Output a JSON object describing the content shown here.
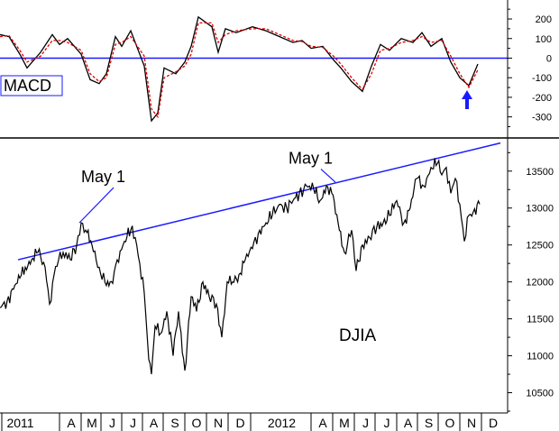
{
  "colors": {
    "price": "#000000",
    "macd": "#000000",
    "signal": "#e00000",
    "trend": "#1a1aff",
    "zero": "#1a1aff",
    "arrow": "#1a1aff",
    "axis": "#000000"
  },
  "chart_data": [
    {
      "type": "line",
      "panel": "macd",
      "label": "MACD",
      "ylim": [
        -380,
        260
      ],
      "yticks": [
        200,
        100,
        0,
        -100,
        -200,
        -300
      ],
      "reference_line": 0,
      "series": [
        {
          "style": "solid-black",
          "x": [
            0,
            10,
            22,
            30,
            45,
            58,
            66,
            75,
            90,
            100,
            110,
            118,
            128,
            135,
            145,
            160,
            168,
            175,
            182,
            195,
            205,
            212,
            220,
            235,
            242,
            250,
            262,
            280,
            295,
            310,
            325,
            335,
            345,
            358,
            370,
            378,
            390,
            402,
            412,
            422,
            432,
            445,
            458,
            468,
            478,
            490,
            500,
            510,
            520,
            530
          ],
          "y": [
            120,
            110,
            20,
            -50,
            30,
            120,
            70,
            100,
            20,
            -110,
            -130,
            -80,
            110,
            60,
            140,
            -40,
            -320,
            -280,
            -50,
            -80,
            -20,
            60,
            210,
            160,
            30,
            150,
            130,
            160,
            140,
            110,
            80,
            90,
            50,
            60,
            -10,
            -50,
            -120,
            -170,
            -40,
            70,
            40,
            100,
            80,
            130,
            60,
            100,
            -20,
            -100,
            -140,
            -30
          ]
        },
        {
          "style": "dashed-red",
          "x": [
            0,
            10,
            22,
            30,
            45,
            58,
            66,
            75,
            90,
            100,
            110,
            118,
            128,
            135,
            145,
            160,
            168,
            175,
            182,
            195,
            205,
            212,
            220,
            235,
            242,
            250,
            262,
            280,
            295,
            310,
            325,
            335,
            345,
            358,
            370,
            378,
            390,
            402,
            412,
            422,
            432,
            445,
            458,
            468,
            478,
            490,
            500,
            510,
            520,
            530
          ],
          "y": [
            110,
            115,
            40,
            -20,
            10,
            90,
            90,
            80,
            40,
            -80,
            -120,
            -100,
            70,
            80,
            110,
            10,
            -260,
            -300,
            -100,
            -70,
            -40,
            20,
            180,
            180,
            80,
            120,
            140,
            150,
            150,
            120,
            90,
            85,
            60,
            55,
            10,
            -30,
            -100,
            -160,
            -80,
            40,
            50,
            80,
            90,
            110,
            80,
            90,
            10,
            -80,
            -150,
            -60
          ]
        }
      ],
      "annotation": {
        "type": "arrow-up",
        "x": 518
      }
    },
    {
      "type": "line",
      "panel": "price",
      "label": "DJIA",
      "ylim": [
        10250,
        13900
      ],
      "yticks": [
        13500,
        13000,
        12500,
        12000,
        11500,
        11000,
        10500
      ],
      "xticks": [
        "2011",
        "A",
        "M",
        "J",
        "J",
        "A",
        "S",
        "O",
        "N",
        "D",
        "2012",
        "A",
        "M",
        "J",
        "J",
        "A",
        "S",
        "O",
        "N",
        "D"
      ],
      "series": [
        {
          "name": "DJIA",
          "x": [
            0,
            8,
            15,
            22,
            28,
            35,
            42,
            50,
            55,
            60,
            65,
            70,
            78,
            85,
            90,
            95,
            102,
            110,
            118,
            125,
            130,
            138,
            145,
            150,
            155,
            160,
            165,
            168,
            172,
            178,
            185,
            192,
            198,
            205,
            212,
            218,
            225,
            232,
            240,
            246,
            252,
            258,
            265,
            272,
            280,
            288,
            295,
            302,
            310,
            318,
            325,
            332,
            340,
            348,
            355,
            362,
            368,
            375,
            382,
            390,
            395,
            402,
            410,
            418,
            425,
            432,
            440,
            448,
            455,
            462,
            470,
            478,
            485,
            490,
            495,
            500,
            505,
            510,
            515,
            520,
            525,
            532
          ],
          "y": [
            11650,
            11750,
            11900,
            12050,
            12200,
            12300,
            12400,
            12200,
            11700,
            12100,
            12300,
            12400,
            12300,
            12500,
            12800,
            12700,
            12500,
            12200,
            11950,
            11980,
            12300,
            12550,
            12700,
            12600,
            12250,
            11850,
            10950,
            10750,
            11400,
            11300,
            11600,
            11000,
            11600,
            10800,
            11800,
            11600,
            12000,
            11800,
            11700,
            11250,
            12000,
            12000,
            12100,
            12300,
            12450,
            12700,
            12800,
            12900,
            13050,
            13000,
            13100,
            13200,
            13300,
            13250,
            13100,
            13300,
            13200,
            12800,
            12400,
            12700,
            12150,
            12500,
            12600,
            12750,
            12800,
            12900,
            13100,
            12800,
            13000,
            13400,
            13300,
            13550,
            13600,
            13450,
            13550,
            13200,
            13400,
            13050,
            12550,
            12900,
            12950,
            13050
          ]
        }
      ],
      "trendline": {
        "x": [
          20,
          555
        ],
        "y": [
          12300,
          13880
        ]
      },
      "annotations": [
        {
          "text": "May 1",
          "x": 90,
          "y": 13350,
          "pointer": {
            "x": 88,
            "y": 12800
          }
        },
        {
          "text": "May 1",
          "x": 320,
          "y": 13600,
          "pointer": {
            "x": 372,
            "y": 13350
          }
        }
      ]
    }
  ]
}
